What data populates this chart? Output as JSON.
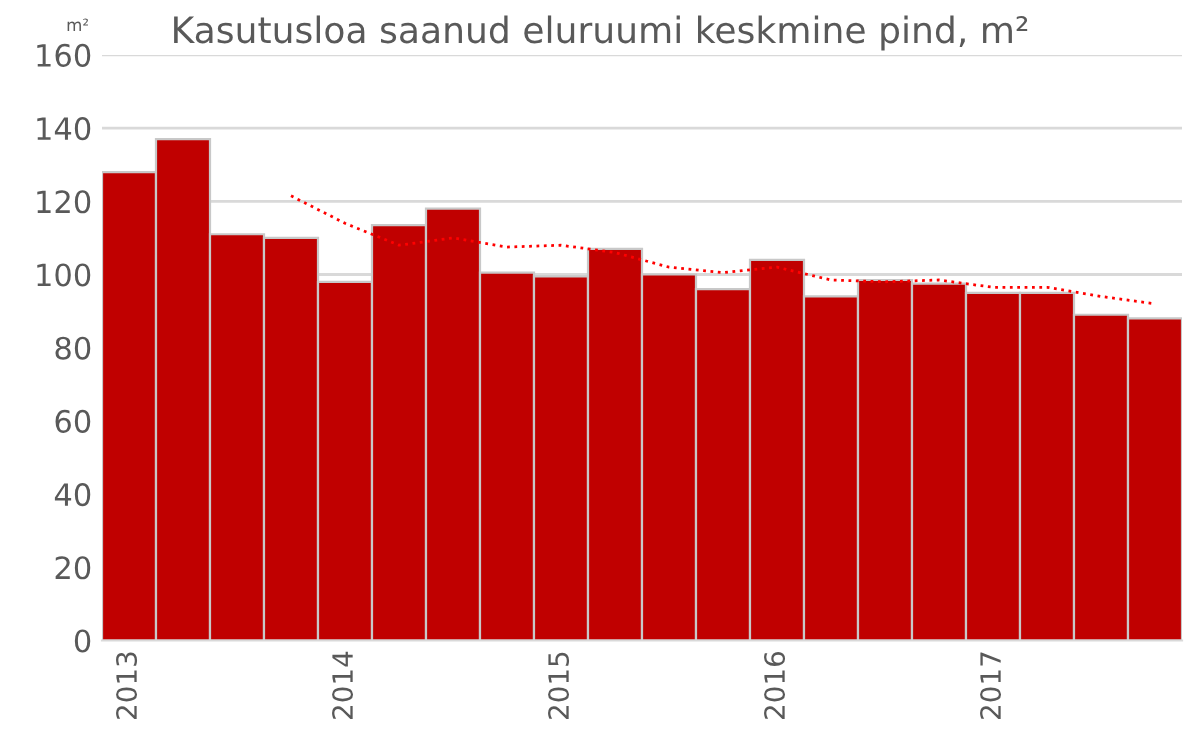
{
  "chart_data": {
    "type": "bar",
    "title": "Kasutusloa saanud eluruumi keskmine pind, m²",
    "ylabel": "m²",
    "categories": [
      "2013",
      null,
      null,
      null,
      "2014",
      null,
      null,
      null,
      "2015",
      null,
      null,
      null,
      "2016",
      null,
      null,
      null,
      "2017",
      null,
      null,
      null
    ],
    "series": [
      {
        "color": "#c00000",
        "values": [
          128,
          137,
          111,
          110,
          98,
          113.5,
          118,
          100.5,
          99.5,
          107,
          100,
          96,
          104,
          94,
          98.5,
          97.5,
          95,
          95,
          89,
          88
        ]
      },
      {
        "type": "line",
        "color": "#ff0000",
        "line_style": "dotted",
        "values": [
          null,
          null,
          null,
          121.5,
          114,
          108,
          110,
          107.5,
          108,
          106,
          102,
          100.5,
          102,
          98.5,
          98,
          98.5,
          96.5,
          96.5,
          94,
          92
        ]
      }
    ],
    "ylim": [
      0,
      160
    ],
    "yticks": [
      0,
      20,
      40,
      60,
      80,
      100,
      120,
      140,
      160
    ],
    "grid": "y",
    "legend": false
  }
}
